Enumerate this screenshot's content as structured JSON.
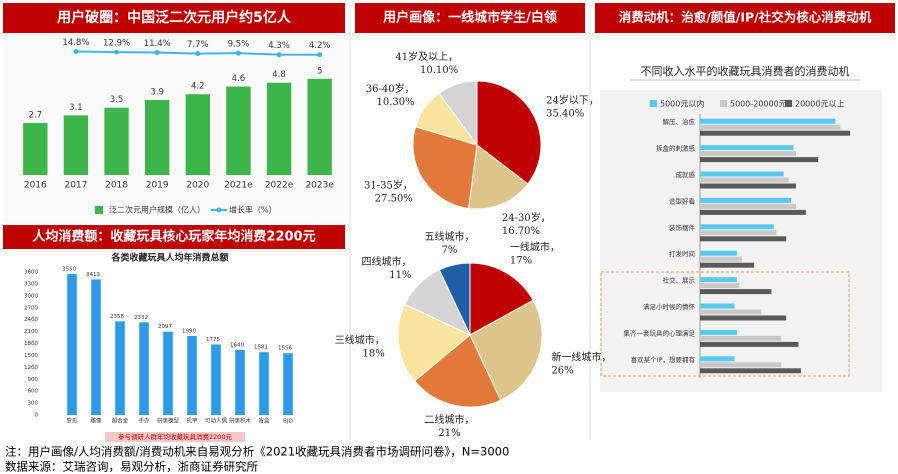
{
  "chart_data": [
    {
      "type": "combo",
      "title": "用户破圈：中国泛二次元用户约5亿人",
      "categories": [
        "2016",
        "2017",
        "2018",
        "2019",
        "2020",
        "2021e",
        "2022e",
        "2023e"
      ],
      "series": [
        {
          "name": "泛二次元用户规模（亿人）",
          "type": "bar",
          "color": "#3db54a",
          "values": [
            2.7,
            3.1,
            3.5,
            3.9,
            4.2,
            4.6,
            4.8,
            5.0
          ]
        },
        {
          "name": "增长率（%）",
          "type": "line",
          "axis": "y2",
          "color": "#41b6e6",
          "values": [
            null,
            14.8,
            12.9,
            11.4,
            7.7,
            9.5,
            4.3,
            4.2
          ],
          "value_labels": [
            null,
            "14.8%",
            "12.9%",
            "11.4%",
            "7.7%",
            "9.5%",
            "4.3%",
            "4.2%"
          ]
        }
      ],
      "ylim": [
        0,
        6.5
      ],
      "y2lim": [
        -400,
        20
      ]
    },
    {
      "type": "bar",
      "title": "人均消费额：收藏玩具核心玩家年均消费2200元",
      "subtitle": "各类收藏玩具人均年消费总额",
      "note": "参与调研人群年均收藏玩具消费2200元",
      "categories": [
        "变形",
        "雕像",
        "超合金",
        "手办",
        "拼装模型",
        "机甲",
        "可动人偶",
        "拼装积木",
        "盲盒",
        "BJD"
      ],
      "values": [
        3550,
        3413,
        2358,
        2332,
        2097,
        1990,
        1775,
        1640,
        1581,
        1556
      ],
      "color": "#2e9be6",
      "ylim": [
        0,
        3600
      ],
      "yticks": [
        0,
        300,
        600,
        900,
        1200,
        1500,
        1800,
        2100,
        2400,
        2700,
        3000,
        3300,
        3600
      ],
      "grid": false
    },
    {
      "type": "pie",
      "title": "用户画像：一线城市学生/白领",
      "categories": [
        "24岁以下，",
        "24-30岁，",
        "31-35岁，",
        "36-40岁，",
        "41岁及以上，"
      ],
      "values": [
        35.4,
        16.7,
        27.5,
        10.3,
        10.1
      ],
      "value_labels": [
        "35.40%",
        "16.70%",
        "27.50%",
        "10.30%",
        "10.10%"
      ],
      "colors": [
        "#c00000",
        "#dcc48a",
        "#e2793a",
        "#f8e49c",
        "#d4d4d4"
      ]
    },
    {
      "type": "pie",
      "categories": [
        "一线城市，",
        "新一线城市，",
        "二线城市，",
        "三线城市，",
        "四线城市，",
        "五线城市，"
      ],
      "values": [
        17,
        26,
        21,
        18,
        11,
        7
      ],
      "value_labels": [
        "17%",
        "26%",
        "21%",
        "18%",
        "11%",
        "7%"
      ],
      "colors": [
        "#c00000",
        "#dcc48a",
        "#e2793a",
        "#f8e49c",
        "#d4d4d4",
        "#1f5fa8"
      ]
    },
    {
      "type": "bar",
      "orientation": "horizontal",
      "title": "消费动机：治愈/颜值/IP/社交为核心消费动机",
      "subtitle": "不同收入水平的收藏玩具消费者的消费动机",
      "categories": [
        "解压、治愈",
        "拆盒的刺激感",
        "成就感",
        "造型好看",
        "装饰摆件",
        "打发时间",
        "社交、展示",
        "满足小时候的情怀",
        "集齐一套玩具的心理满足",
        "喜欢某个IP，想要拥有"
      ],
      "series": [
        {
          "name": "5000元以内",
          "color": "#5bc8f0",
          "values": [
            55,
            38,
            34,
            37,
            30,
            15,
            15,
            14,
            15,
            14
          ]
        },
        {
          "name": "5000-20000元",
          "color": "#c8c8c8",
          "values": [
            57,
            39,
            36,
            39,
            31,
            17,
            16,
            25,
            33,
            33
          ]
        },
        {
          "name": "20000元以上",
          "color": "#595959",
          "values": [
            61,
            48,
            39,
            43,
            35,
            22,
            29,
            35,
            40,
            41
          ]
        }
      ],
      "xlim": [
        0,
        65
      ]
    }
  ],
  "footer": {
    "note": "注：用户画像/人均消费额/消费动机来自易观分析《2021收藏玩具消费者市场调研问卷》，N=3000",
    "source": "数据来源：艾瑞咨询，易观分析，浙商证券研究所"
  }
}
